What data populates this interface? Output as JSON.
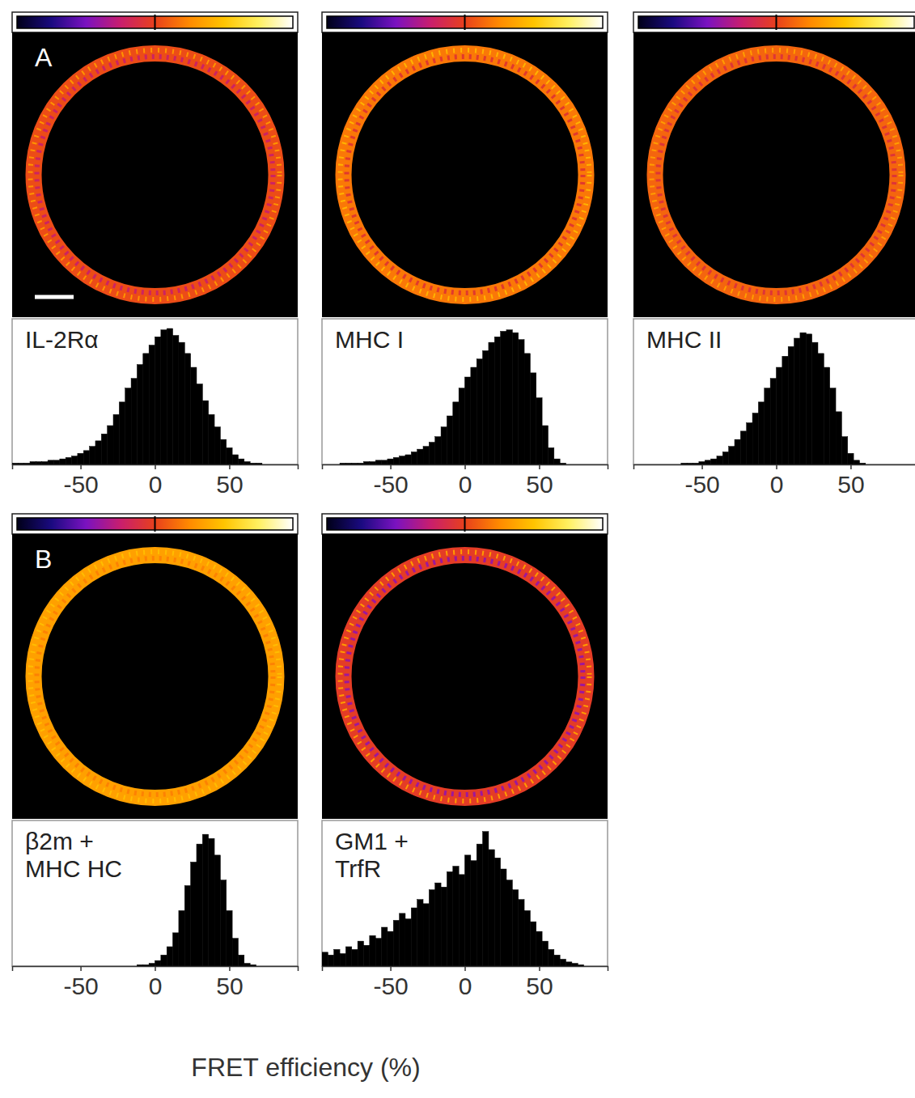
{
  "chart_data": [
    {
      "type": "histogram",
      "title": "IL-2Rα",
      "panel_label": "A",
      "color": "#000000",
      "bins": [
        -96,
        -92,
        -88,
        -84,
        -80,
        -76,
        -72,
        -68,
        -64,
        -60,
        -56,
        -52,
        -48,
        -44,
        -40,
        -36,
        -32,
        -28,
        -24,
        -20,
        -16,
        -12,
        -8,
        -4,
        0,
        4,
        8,
        12,
        16,
        20,
        24,
        28,
        32,
        36,
        40,
        44,
        48,
        52,
        56,
        60,
        64,
        68,
        72,
        76,
        80,
        84,
        88,
        92,
        96
      ],
      "counts": [
        1,
        1,
        1,
        2,
        2,
        2,
        3,
        3,
        4,
        5,
        6,
        8,
        10,
        13,
        17,
        22,
        28,
        36,
        45,
        55,
        62,
        72,
        80,
        86,
        92,
        97,
        98,
        93,
        88,
        80,
        70,
        58,
        46,
        36,
        27,
        18,
        12,
        7,
        4,
        2,
        1,
        1,
        0,
        0,
        0,
        0,
        0,
        0
      ],
      "xlim": [
        -96,
        96
      ],
      "xticks": [
        -50,
        0,
        50
      ],
      "ylim": [
        0,
        105
      ],
      "tick_labels": "x"
    },
    {
      "type": "histogram",
      "title": "MHC I",
      "color": "#000000",
      "bins": [
        -96,
        -92,
        -88,
        -84,
        -80,
        -76,
        -72,
        -68,
        -64,
        -60,
        -56,
        -52,
        -48,
        -44,
        -40,
        -36,
        -32,
        -28,
        -24,
        -20,
        -16,
        -12,
        -8,
        -4,
        0,
        4,
        8,
        12,
        16,
        20,
        24,
        28,
        32,
        36,
        40,
        44,
        48,
        52,
        56,
        60,
        64,
        68,
        72,
        76,
        80,
        84,
        88,
        92,
        96
      ],
      "counts": [
        0,
        0,
        0,
        1,
        1,
        1,
        1,
        2,
        2,
        3,
        3,
        4,
        5,
        6,
        7,
        9,
        11,
        13,
        16,
        20,
        27,
        35,
        45,
        55,
        63,
        70,
        76,
        82,
        88,
        92,
        96,
        97,
        95,
        90,
        80,
        66,
        48,
        28,
        12,
        4,
        1,
        0,
        0,
        0,
        0,
        0,
        0,
        0
      ],
      "xlim": [
        -96,
        96
      ],
      "xticks": [
        -50,
        0,
        50
      ],
      "ylim": [
        0,
        105
      ],
      "tick_labels": "x"
    },
    {
      "type": "histogram",
      "title": "MHC II",
      "color": "#000000",
      "bins": [
        -96,
        -92,
        -88,
        -84,
        -80,
        -76,
        -72,
        -68,
        -64,
        -60,
        -56,
        -52,
        -48,
        -44,
        -40,
        -36,
        -32,
        -28,
        -24,
        -20,
        -16,
        -12,
        -8,
        -4,
        0,
        4,
        8,
        12,
        16,
        20,
        24,
        28,
        32,
        36,
        40,
        44,
        48,
        52,
        56,
        60,
        64,
        68,
        72,
        76,
        80,
        84,
        88,
        92,
        96
      ],
      "counts": [
        0,
        0,
        0,
        0,
        0,
        0,
        0,
        0,
        1,
        1,
        1,
        2,
        3,
        4,
        6,
        9,
        13,
        18,
        24,
        30,
        37,
        45,
        55,
        62,
        70,
        78,
        85,
        91,
        95,
        94,
        88,
        80,
        70,
        55,
        38,
        20,
        8,
        3,
        1,
        0,
        0,
        0,
        0,
        0,
        0,
        0,
        0,
        0
      ],
      "xlim": [
        -96,
        96
      ],
      "xticks": [
        -50,
        0,
        50
      ],
      "ylim": [
        0,
        105
      ],
      "tick_labels": "x"
    },
    {
      "type": "histogram",
      "title": "β2m + MHC HC",
      "panel_label": "B",
      "color": "#000000",
      "bins": [
        -96,
        -92,
        -88,
        -84,
        -80,
        -76,
        -72,
        -68,
        -64,
        -60,
        -56,
        -52,
        -48,
        -44,
        -40,
        -36,
        -32,
        -28,
        -24,
        -20,
        -16,
        -12,
        -8,
        -4,
        0,
        4,
        8,
        12,
        16,
        20,
        24,
        28,
        32,
        36,
        40,
        44,
        48,
        52,
        56,
        60,
        64,
        68,
        72,
        76,
        80,
        84,
        88,
        92,
        96
      ],
      "counts": [
        0,
        0,
        0,
        0,
        0,
        0,
        0,
        0,
        0,
        0,
        0,
        0,
        0,
        0,
        0,
        0,
        0,
        0,
        0,
        0,
        0,
        1,
        1,
        2,
        4,
        8,
        14,
        24,
        40,
        58,
        75,
        88,
        95,
        92,
        80,
        62,
        40,
        20,
        8,
        2,
        1,
        0,
        0,
        0,
        0,
        0,
        0,
        0
      ],
      "xlim": [
        -96,
        96
      ],
      "xticks": [
        -50,
        0,
        50
      ],
      "ylim": [
        0,
        105
      ],
      "tick_labels": "x"
    },
    {
      "type": "histogram",
      "title": "GM1 + TrfR",
      "color": "#000000",
      "bins": [
        -96,
        -92,
        -88,
        -84,
        -80,
        -76,
        -72,
        -68,
        -64,
        -60,
        -56,
        -52,
        -48,
        -44,
        -40,
        -36,
        -32,
        -28,
        -24,
        -20,
        -16,
        -12,
        -8,
        -4,
        0,
        4,
        8,
        12,
        16,
        20,
        24,
        28,
        32,
        36,
        40,
        44,
        48,
        52,
        56,
        60,
        64,
        68,
        72,
        76,
        80,
        84,
        88,
        92,
        96
      ],
      "counts": [
        10,
        8,
        12,
        9,
        14,
        12,
        18,
        15,
        22,
        20,
        28,
        25,
        33,
        38,
        34,
        42,
        48,
        45,
        55,
        60,
        57,
        68,
        72,
        66,
        80,
        76,
        88,
        97,
        84,
        78,
        70,
        62,
        55,
        48,
        40,
        32,
        25,
        18,
        12,
        8,
        5,
        3,
        2,
        1,
        0,
        0,
        0,
        0
      ],
      "xlim": [
        -96,
        96
      ],
      "xticks": [
        -50,
        0,
        50
      ],
      "ylim": [
        0,
        105
      ],
      "tick_labels": "x"
    }
  ],
  "x_label": "FRET efficiency (%)"
}
